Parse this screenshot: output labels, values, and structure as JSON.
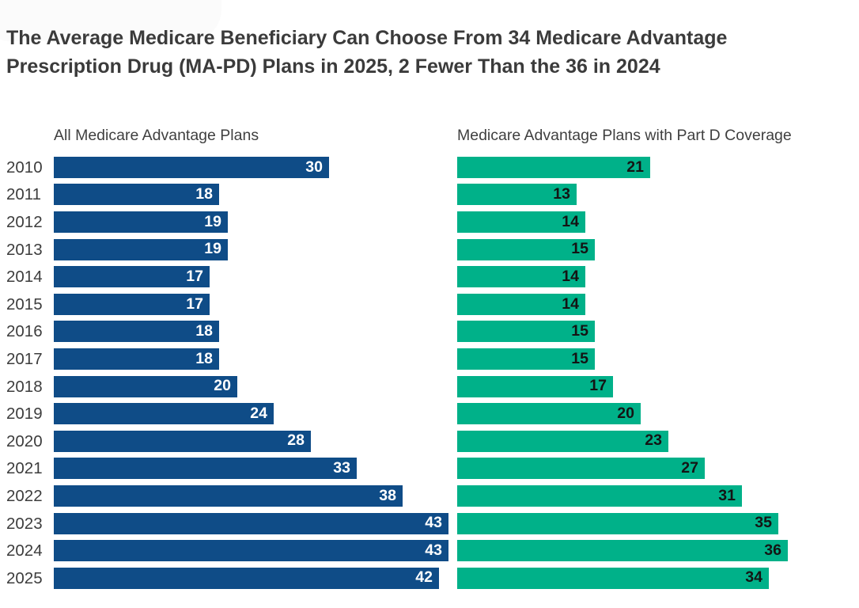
{
  "title": {
    "line1": "The Average Medicare Beneficiary Can Choose From 34 Medicare Advantage",
    "line2": "Prescription Drug (MA-PD) Plans in 2025, 2 Fewer Than the 36 in 2024"
  },
  "panels": {
    "left_header": "All Medicare Advantage Plans",
    "right_header": "Medicare Advantage Plans with Part D Coverage"
  },
  "colors": {
    "all_plans_bar": "#0F4C87",
    "mapd_bar": "#00B189",
    "all_plans_value_text": "#FFFFFF",
    "mapd_value_text": "#141414",
    "title_text": "#3B3B3B",
    "axis_text": "#3D3D3D"
  },
  "chart_data": {
    "type": "bar",
    "orientation": "horizontal",
    "title": "The Average Medicare Beneficiary Can Choose From 34 Medicare Advantage Prescription Drug (MA-PD) Plans in 2025, 2 Fewer Than the 36 in 2024",
    "categories": [
      "2010",
      "2011",
      "2012",
      "2013",
      "2014",
      "2015",
      "2016",
      "2017",
      "2018",
      "2019",
      "2020",
      "2021",
      "2022",
      "2023",
      "2024",
      "2025"
    ],
    "series": [
      {
        "name": "All Medicare Advantage Plans",
        "color": "#0F4C87",
        "label_color": "#FFFFFF",
        "values": [
          30,
          18,
          19,
          19,
          17,
          17,
          18,
          18,
          20,
          24,
          28,
          33,
          38,
          43,
          43,
          42
        ]
      },
      {
        "name": "Medicare Advantage Plans with Part D Coverage",
        "color": "#00B189",
        "label_color": "#141414",
        "values": [
          21,
          13,
          14,
          15,
          14,
          14,
          15,
          15,
          17,
          20,
          23,
          27,
          31,
          35,
          36,
          34
        ]
      }
    ],
    "value_labels": "inside-end",
    "xlim": [
      0,
      44
    ],
    "grid": false,
    "legend_position": "column-headers-above-each-panel"
  }
}
